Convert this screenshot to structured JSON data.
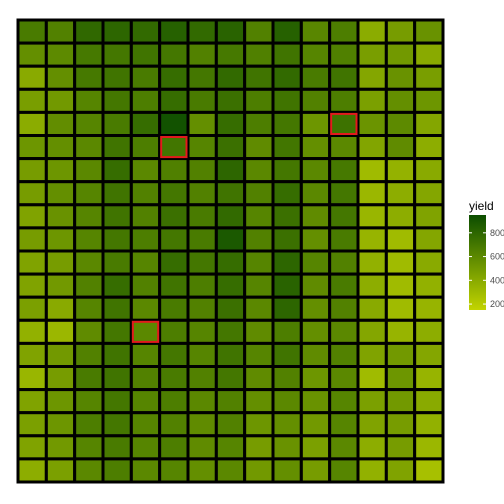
{
  "chart_data": {
    "type": "heatmap",
    "title": "",
    "xlabel": "",
    "ylabel": "",
    "n_cols": 15,
    "n_rows": 20,
    "value_range": [
      150,
      950
    ],
    "legend": {
      "title": "yield",
      "ticks": [
        200,
        400,
        600,
        800
      ],
      "color_low": "#c2d400",
      "color_high": "#0b4d00",
      "placement": "right"
    },
    "grid_border_color": "#000000",
    "highlight_color": "#e31a1c",
    "highlighted_cells": [
      {
        "row": 4,
        "col": 11
      },
      {
        "row": 5,
        "col": 5
      },
      {
        "row": 13,
        "col": 4
      }
    ],
    "values": [
      [
        680,
        640,
        790,
        800,
        780,
        830,
        780,
        820,
        640,
        830,
        610,
        660,
        390,
        480,
        540
      ],
      [
        560,
        590,
        690,
        700,
        720,
        700,
        640,
        690,
        650,
        720,
        620,
        650,
        470,
        500,
        400
      ],
      [
        400,
        560,
        690,
        720,
        680,
        760,
        700,
        780,
        720,
        780,
        680,
        720,
        420,
        540,
        470
      ],
      [
        470,
        500,
        620,
        700,
        660,
        760,
        680,
        740,
        660,
        720,
        640,
        660,
        460,
        560,
        520
      ],
      [
        390,
        570,
        620,
        680,
        760,
        920,
        560,
        760,
        660,
        700,
        520,
        730,
        530,
        590,
        420
      ],
      [
        520,
        560,
        600,
        720,
        660,
        710,
        620,
        740,
        580,
        710,
        560,
        600,
        430,
        580,
        380
      ],
      [
        480,
        520,
        600,
        760,
        600,
        650,
        640,
        800,
        600,
        700,
        600,
        690,
        300,
        350,
        400
      ],
      [
        480,
        560,
        620,
        720,
        640,
        700,
        640,
        720,
        640,
        760,
        600,
        700,
        320,
        380,
        420
      ],
      [
        440,
        540,
        620,
        720,
        640,
        740,
        680,
        780,
        620,
        740,
        580,
        700,
        330,
        380,
        440
      ],
      [
        480,
        520,
        620,
        700,
        660,
        700,
        680,
        880,
        640,
        740,
        560,
        680,
        340,
        300,
        420
      ],
      [
        440,
        480,
        600,
        680,
        620,
        760,
        700,
        760,
        620,
        800,
        620,
        640,
        360,
        300,
        400
      ],
      [
        440,
        500,
        640,
        760,
        640,
        720,
        660,
        760,
        620,
        820,
        580,
        680,
        380,
        300,
        360
      ],
      [
        460,
        400,
        620,
        720,
        600,
        680,
        640,
        740,
        600,
        800,
        560,
        640,
        400,
        300,
        340
      ],
      [
        360,
        320,
        580,
        700,
        600,
        660,
        620,
        700,
        580,
        660,
        560,
        600,
        420,
        340,
        380
      ],
      [
        440,
        500,
        640,
        720,
        620,
        700,
        620,
        720,
        620,
        720,
        580,
        640,
        440,
        500,
        420
      ],
      [
        330,
        480,
        680,
        720,
        640,
        680,
        640,
        700,
        580,
        640,
        520,
        600,
        300,
        520,
        340
      ],
      [
        440,
        520,
        620,
        700,
        620,
        660,
        600,
        640,
        560,
        600,
        540,
        620,
        460,
        500,
        400
      ],
      [
        460,
        520,
        660,
        700,
        620,
        640,
        580,
        640,
        520,
        560,
        500,
        620,
        440,
        480,
        360
      ],
      [
        440,
        500,
        620,
        680,
        620,
        660,
        580,
        620,
        480,
        540,
        460,
        600,
        380,
        480,
        320
      ],
      [
        380,
        460,
        600,
        660,
        600,
        620,
        560,
        600,
        500,
        560,
        480,
        620,
        360,
        440,
        270
      ]
    ]
  }
}
